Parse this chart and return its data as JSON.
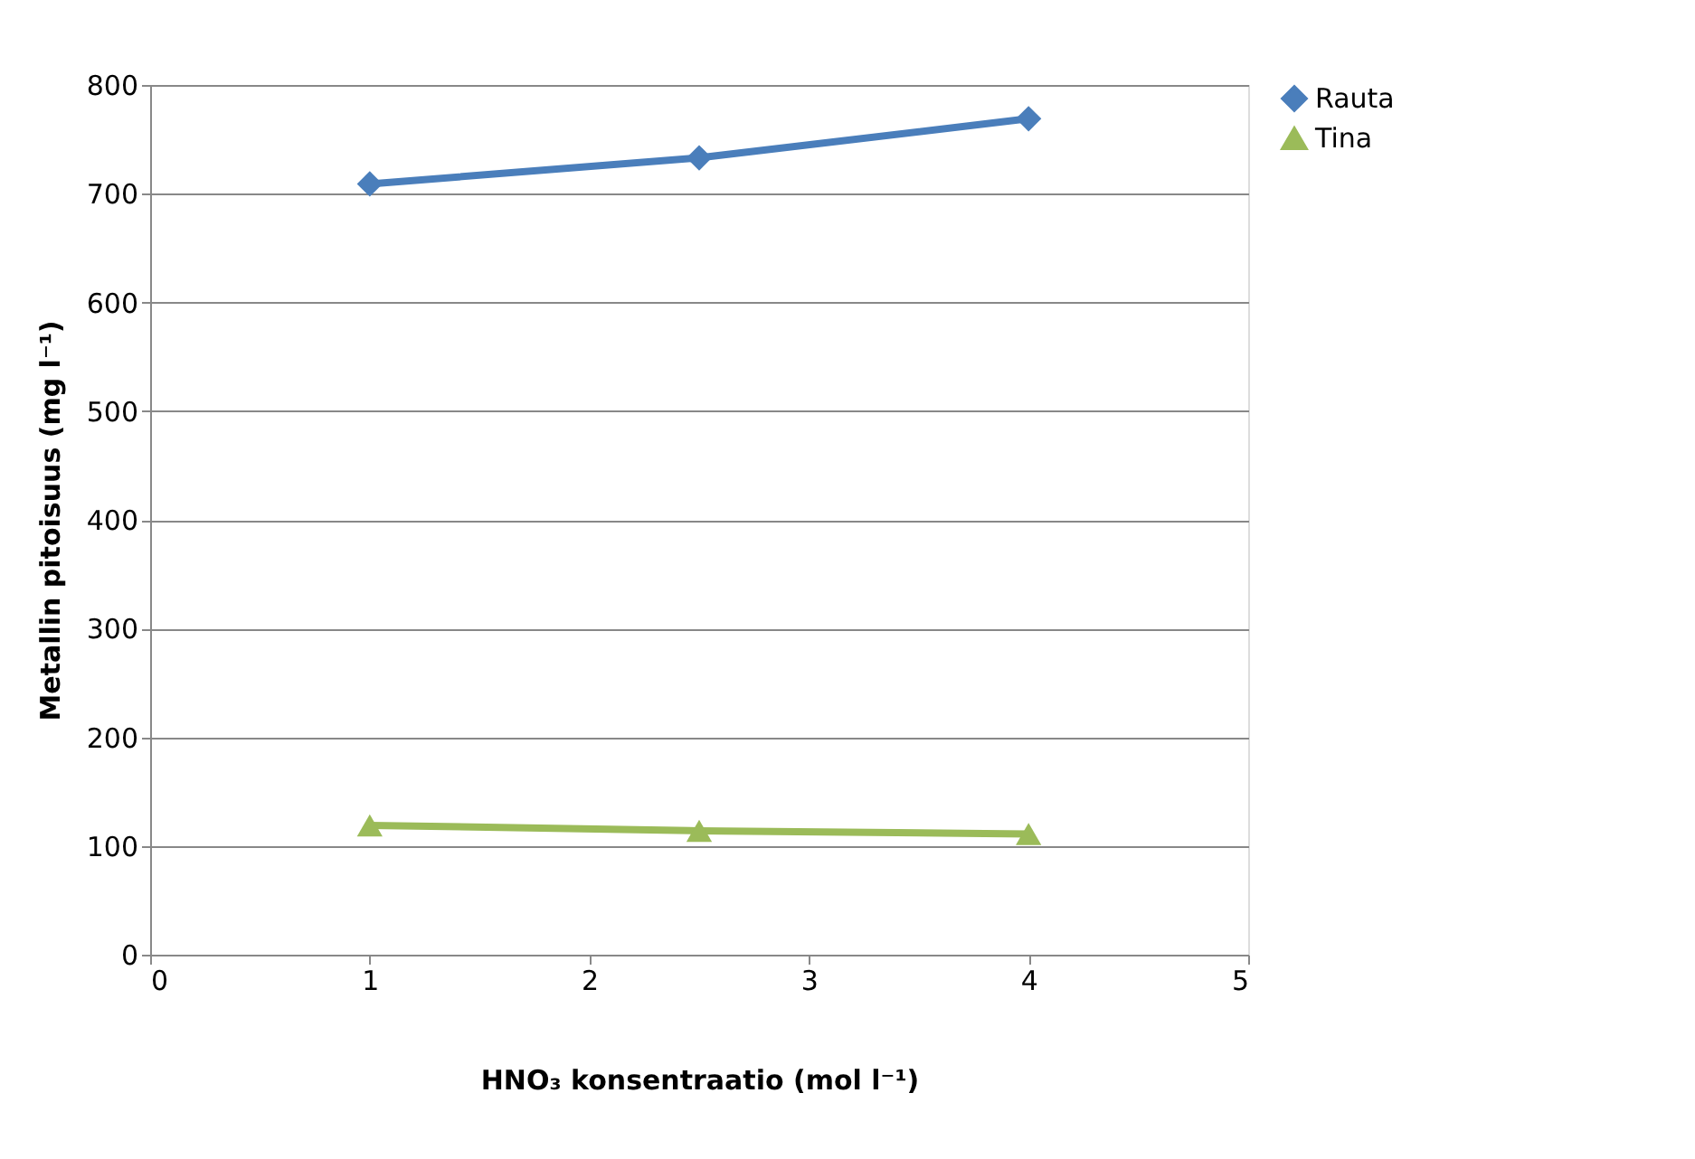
{
  "chart_data": {
    "type": "line",
    "xlabel": "HNO₃ konsentraatio (mol l⁻¹)",
    "ylabel": "Metallin pitoisuus (mg l⁻¹)",
    "x": [
      1,
      2.5,
      4
    ],
    "series": [
      {
        "name": "Rauta",
        "color": "#4a7ebb",
        "values": [
          709,
          733,
          769
        ],
        "marker": "diamond"
      },
      {
        "name": "Tina",
        "color": "#9bbb59",
        "values": [
          119,
          114,
          111
        ],
        "marker": "triangle"
      }
    ],
    "xlim": [
      0,
      5
    ],
    "xticks": [
      0,
      1,
      2,
      3,
      4,
      5
    ],
    "ylim": [
      0,
      800
    ],
    "yticks": [
      0,
      100,
      200,
      300,
      400,
      500,
      600,
      700,
      800
    ],
    "grid": "y",
    "legend": "right",
    "line_style": "solid"
  }
}
